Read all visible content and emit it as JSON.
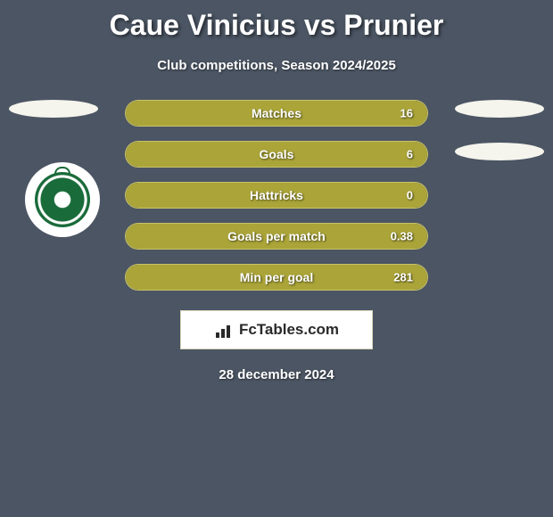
{
  "title": "Caue Vinicius vs Prunier",
  "subtitle": "Club competitions, Season 2024/2025",
  "date": "28 december 2024",
  "brand": "FcTables.com",
  "colors": {
    "background": "#4b5563",
    "bar_fill": "#aba539",
    "bar_border": "#c8c26a",
    "text": "#ffffff",
    "ellipse": "#f5f4ed",
    "badge_green": "#1a6b3a",
    "brand_box_bg": "#ffffff",
    "brand_text": "#2a2a2a"
  },
  "stats": [
    {
      "label": "Matches",
      "value": "16",
      "fill_pct": 100
    },
    {
      "label": "Goals",
      "value": "6",
      "fill_pct": 100
    },
    {
      "label": "Hattricks",
      "value": "0",
      "fill_pct": 100
    },
    {
      "label": "Goals per match",
      "value": "0.38",
      "fill_pct": 100
    },
    {
      "label": "Min per goal",
      "value": "281",
      "fill_pct": 100
    }
  ]
}
